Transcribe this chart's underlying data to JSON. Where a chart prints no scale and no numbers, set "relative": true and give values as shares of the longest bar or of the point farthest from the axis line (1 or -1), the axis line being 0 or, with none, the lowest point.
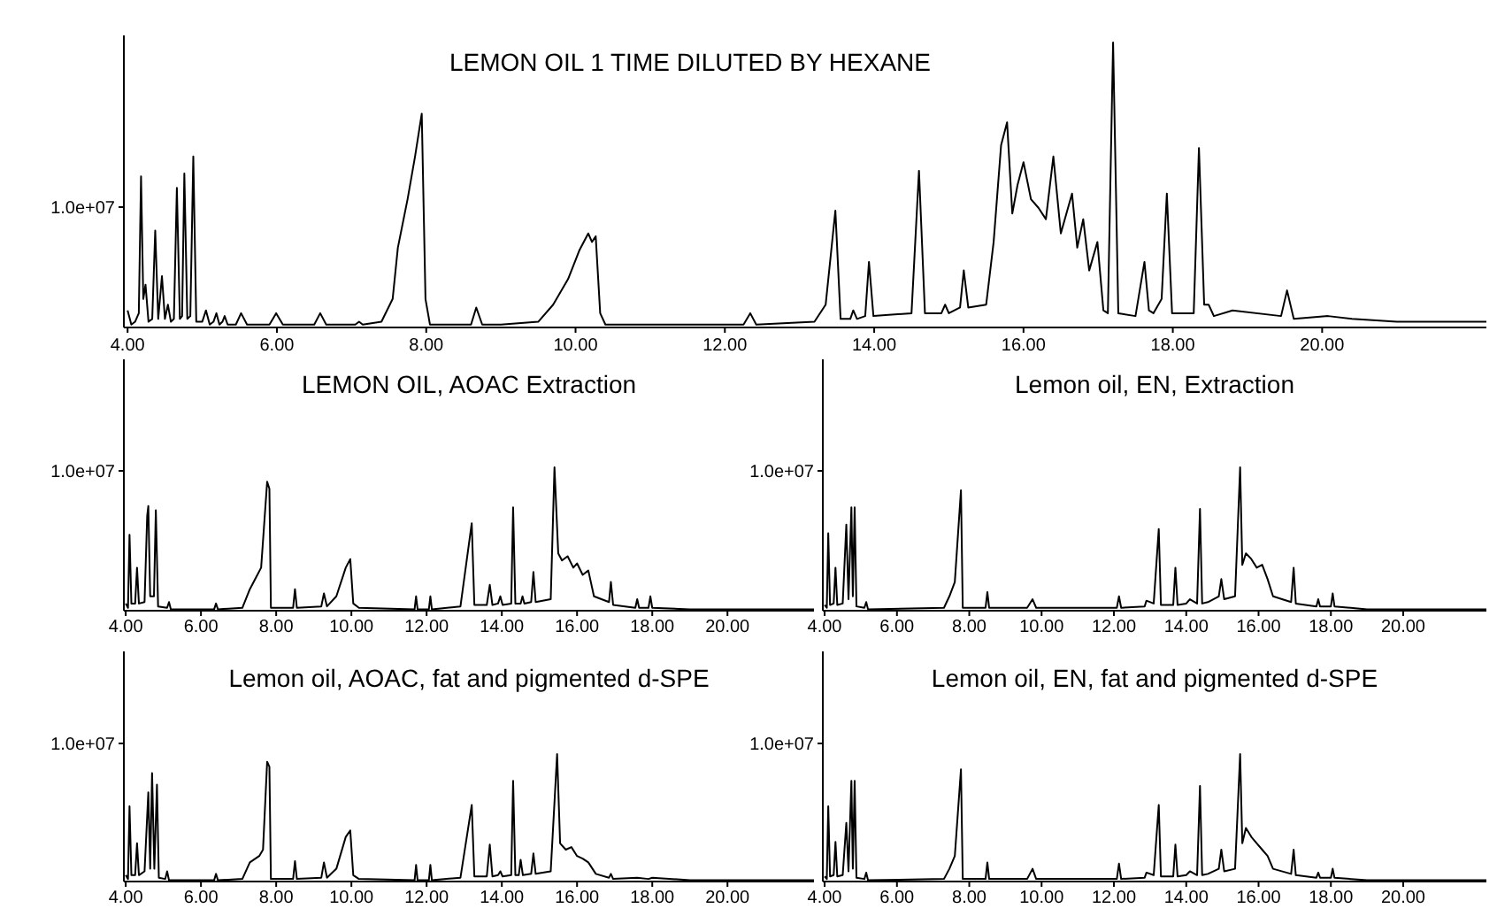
{
  "chart_data": [
    {
      "type": "line",
      "title": "LEMON OIL 1 TIME DILUTED BY HEXANE",
      "relative": true,
      "xlim": [
        3.95,
        22.2
      ],
      "xticks": [
        {
          "value": 4,
          "label": "4.00"
        },
        {
          "value": 6,
          "label": "6.00"
        },
        {
          "value": 8,
          "label": "8.00"
        },
        {
          "value": 10,
          "label": "10.00"
        },
        {
          "value": 12,
          "label": "12.00"
        },
        {
          "value": 14,
          "label": "14.00"
        },
        {
          "value": 16,
          "label": "16.00"
        },
        {
          "value": 18,
          "label": "18.00"
        },
        {
          "value": 20,
          "label": "20.00"
        }
      ],
      "annotations": [
        "1.0e+07"
      ],
      "marker": "none",
      "series": [
        {
          "color": "#000000",
          "x": [
            4.0,
            4.05,
            4.1,
            4.15,
            4.18,
            4.21,
            4.24,
            4.28,
            4.33,
            4.37,
            4.41,
            4.46,
            4.5,
            4.54,
            4.58,
            4.62,
            4.66,
            4.7,
            4.73,
            4.76,
            4.8,
            4.84,
            4.88,
            4.92,
            5.0,
            5.05,
            5.1,
            5.15,
            5.19,
            5.23,
            5.27,
            5.3,
            5.34,
            5.45,
            5.52,
            5.6,
            5.9,
            5.99,
            6.08,
            6.5,
            6.58,
            6.66,
            7.05,
            7.1,
            7.15,
            7.4,
            7.55,
            7.62,
            7.75,
            7.85,
            7.94,
            7.99,
            8.05,
            8.6,
            8.67,
            8.75,
            9.0,
            9.5,
            9.7,
            9.9,
            10.05,
            10.17,
            10.22,
            10.27,
            10.33,
            10.4,
            12.25,
            12.34,
            12.42,
            13.2,
            13.35,
            13.48,
            13.55,
            13.68,
            13.72,
            13.77,
            13.88,
            13.93,
            13.99,
            14.5,
            14.6,
            14.68,
            14.9,
            14.95,
            15.0,
            15.15,
            15.2,
            15.26,
            15.5,
            15.6,
            15.7,
            15.78,
            15.85,
            15.92,
            16.0,
            16.1,
            16.2,
            16.3,
            16.4,
            16.5,
            16.65,
            16.72,
            16.8,
            16.88,
            16.99,
            17.07,
            17.13,
            17.2,
            17.27,
            17.5,
            17.62,
            17.68,
            17.74,
            17.85,
            17.92,
            17.99,
            18.28,
            18.35,
            18.42,
            18.48,
            18.55,
            18.8,
            19.45,
            19.53,
            19.62,
            20.08,
            20.4,
            21.0,
            22.2
          ],
          "values": [
            0.06,
            0.01,
            0.02,
            0.05,
            0.53,
            0.1,
            0.15,
            0.02,
            0.03,
            0.34,
            0.03,
            0.18,
            0.03,
            0.08,
            0.02,
            0.03,
            0.49,
            0.03,
            0.04,
            0.54,
            0.03,
            0.04,
            0.6,
            0.02,
            0.02,
            0.06,
            0.01,
            0.02,
            0.05,
            0.01,
            0.02,
            0.04,
            0.01,
            0.01,
            0.05,
            0.01,
            0.01,
            0.05,
            0.01,
            0.01,
            0.05,
            0.01,
            0.01,
            0.02,
            0.01,
            0.02,
            0.1,
            0.28,
            0.45,
            0.6,
            0.75,
            0.1,
            0.01,
            0.01,
            0.07,
            0.01,
            0.01,
            0.02,
            0.08,
            0.17,
            0.27,
            0.33,
            0.3,
            0.32,
            0.05,
            0.01,
            0.01,
            0.05,
            0.01,
            0.02,
            0.08,
            0.41,
            0.03,
            0.03,
            0.06,
            0.03,
            0.04,
            0.23,
            0.04,
            0.05,
            0.55,
            0.05,
            0.05,
            0.08,
            0.05,
            0.07,
            0.2,
            0.07,
            0.08,
            0.3,
            0.64,
            0.72,
            0.4,
            0.5,
            0.58,
            0.45,
            0.42,
            0.38,
            0.6,
            0.33,
            0.47,
            0.28,
            0.38,
            0.2,
            0.3,
            0.06,
            0.05,
            1.0,
            0.05,
            0.04,
            0.23,
            0.06,
            0.05,
            0.1,
            0.47,
            0.05,
            0.05,
            0.63,
            0.08,
            0.08,
            0.04,
            0.06,
            0.04,
            0.13,
            0.03,
            0.04,
            0.03,
            0.02,
            0.02
          ]
        }
      ]
    },
    {
      "type": "line",
      "title": "LEMON OIL, AOAC Extraction",
      "relative": true,
      "xlim": [
        3.95,
        22.3
      ],
      "xticks": [
        {
          "value": 4,
          "label": "4.00"
        },
        {
          "value": 6,
          "label": "6.00"
        },
        {
          "value": 8,
          "label": "8.00"
        },
        {
          "value": 10,
          "label": "10.00"
        },
        {
          "value": 12,
          "label": "12.00"
        },
        {
          "value": 14,
          "label": "14.00"
        },
        {
          "value": 16,
          "label": "16.00"
        },
        {
          "value": 18,
          "label": "18.00"
        },
        {
          "value": 20,
          "label": "20.00"
        }
      ],
      "annotations": [
        "1.0e+07"
      ],
      "marker": "none",
      "series": [
        {
          "color": "#000000",
          "x": [
            4.0,
            4.06,
            4.1,
            4.15,
            4.25,
            4.3,
            4.35,
            4.5,
            4.57,
            4.6,
            4.65,
            4.75,
            4.8,
            4.86,
            5.1,
            5.15,
            5.2,
            6.35,
            6.4,
            6.45,
            7.1,
            7.3,
            7.5,
            7.6,
            7.76,
            7.82,
            7.86,
            8.45,
            8.5,
            8.55,
            9.2,
            9.27,
            9.35,
            9.6,
            9.85,
            9.97,
            10.05,
            10.2,
            11.68,
            11.72,
            11.76,
            12.06,
            12.1,
            12.14,
            12.9,
            13.2,
            13.27,
            13.6,
            13.68,
            13.75,
            13.9,
            13.96,
            14.02,
            14.25,
            14.3,
            14.36,
            14.5,
            14.55,
            14.6,
            14.78,
            14.84,
            14.9,
            15.3,
            15.4,
            15.5,
            15.6,
            15.75,
            15.9,
            16.0,
            16.15,
            16.3,
            16.45,
            16.85,
            16.9,
            16.96,
            17.55,
            17.6,
            17.65,
            17.9,
            17.95,
            18.0,
            19.0,
            22.3
          ],
          "values": [
            0.05,
            0.02,
            0.53,
            0.05,
            0.05,
            0.3,
            0.05,
            0.06,
            0.66,
            0.73,
            0.1,
            0.1,
            0.7,
            0.03,
            0.02,
            0.06,
            0.01,
            0.01,
            0.05,
            0.01,
            0.02,
            0.15,
            0.25,
            0.3,
            0.9,
            0.85,
            0.02,
            0.02,
            0.15,
            0.02,
            0.03,
            0.12,
            0.03,
            0.1,
            0.3,
            0.36,
            0.05,
            0.02,
            0.01,
            0.1,
            0.01,
            0.01,
            0.1,
            0.01,
            0.03,
            0.61,
            0.04,
            0.04,
            0.18,
            0.04,
            0.05,
            0.1,
            0.04,
            0.05,
            0.72,
            0.05,
            0.05,
            0.1,
            0.05,
            0.06,
            0.27,
            0.06,
            0.08,
            1.0,
            0.4,
            0.35,
            0.38,
            0.3,
            0.33,
            0.25,
            0.28,
            0.1,
            0.06,
            0.2,
            0.04,
            0.02,
            0.08,
            0.02,
            0.02,
            0.1,
            0.02,
            0.01,
            0.01
          ]
        }
      ]
    },
    {
      "type": "line",
      "title": "Lemon oil, EN, Extraction",
      "relative": true,
      "xlim": [
        3.95,
        22.3
      ],
      "xticks": [
        {
          "value": 4,
          "label": "4.00"
        },
        {
          "value": 6,
          "label": "6.00"
        },
        {
          "value": 8,
          "label": "8.00"
        },
        {
          "value": 10,
          "label": "10.00"
        },
        {
          "value": 12,
          "label": "12.00"
        },
        {
          "value": 14,
          "label": "14.00"
        },
        {
          "value": 16,
          "label": "16.00"
        },
        {
          "value": 18,
          "label": "18.00"
        },
        {
          "value": 20,
          "label": "20.00"
        }
      ],
      "annotations": [
        "1.0e+07"
      ],
      "marker": "none",
      "series": [
        {
          "color": "#000000",
          "x": [
            4.0,
            4.06,
            4.1,
            4.15,
            4.25,
            4.3,
            4.35,
            4.5,
            4.6,
            4.66,
            4.74,
            4.78,
            4.83,
            4.88,
            5.1,
            5.15,
            5.2,
            7.3,
            7.45,
            7.6,
            7.77,
            7.82,
            8.45,
            8.5,
            8.55,
            9.6,
            9.75,
            9.85,
            12.08,
            12.14,
            12.2,
            12.85,
            12.9,
            13.1,
            13.24,
            13.3,
            13.64,
            13.7,
            13.76,
            14.0,
            14.1,
            14.3,
            14.38,
            14.44,
            14.6,
            14.9,
            14.97,
            15.05,
            15.35,
            15.49,
            15.55,
            15.65,
            15.8,
            15.95,
            16.1,
            16.25,
            16.4,
            16.9,
            16.97,
            17.03,
            17.6,
            17.65,
            17.7,
            18.0,
            18.05,
            18.1,
            19.0,
            22.3
          ],
          "values": [
            0.04,
            0.02,
            0.54,
            0.04,
            0.05,
            0.3,
            0.04,
            0.05,
            0.6,
            0.08,
            0.72,
            0.1,
            0.72,
            0.03,
            0.02,
            0.06,
            0.01,
            0.02,
            0.1,
            0.2,
            0.84,
            0.02,
            0.02,
            0.13,
            0.02,
            0.02,
            0.08,
            0.02,
            0.02,
            0.1,
            0.02,
            0.03,
            0.07,
            0.05,
            0.57,
            0.04,
            0.04,
            0.3,
            0.04,
            0.05,
            0.08,
            0.05,
            0.71,
            0.05,
            0.06,
            0.1,
            0.22,
            0.08,
            0.1,
            1.0,
            0.32,
            0.4,
            0.36,
            0.3,
            0.32,
            0.22,
            0.1,
            0.06,
            0.3,
            0.05,
            0.03,
            0.08,
            0.03,
            0.03,
            0.12,
            0.03,
            0.01,
            0.01
          ]
        }
      ]
    },
    {
      "type": "line",
      "title": "Lemon oil, AOAC, fat and pigmented d-SPE",
      "relative": true,
      "xlim": [
        3.95,
        22.3
      ],
      "xticks": [
        {
          "value": 4,
          "label": "4.00"
        },
        {
          "value": 6,
          "label": "6.00"
        },
        {
          "value": 8,
          "label": "8.00"
        },
        {
          "value": 10,
          "label": "10.00"
        },
        {
          "value": 12,
          "label": "12.00"
        },
        {
          "value": 14,
          "label": "14.00"
        },
        {
          "value": 16,
          "label": "16.00"
        },
        {
          "value": 18,
          "label": "18.00"
        },
        {
          "value": 20,
          "label": "20.00"
        }
      ],
      "annotations": [
        "1.0e+07"
      ],
      "marker": "none",
      "series": [
        {
          "color": "#000000",
          "x": [
            4.0,
            4.06,
            4.1,
            4.15,
            4.25,
            4.3,
            4.35,
            4.5,
            4.6,
            4.65,
            4.7,
            4.76,
            4.83,
            4.88,
            5.05,
            5.1,
            5.15,
            6.35,
            6.4,
            6.45,
            7.1,
            7.3,
            7.55,
            7.65,
            7.76,
            7.82,
            7.86,
            8.45,
            8.5,
            8.55,
            9.2,
            9.27,
            9.35,
            9.6,
            9.85,
            9.97,
            10.05,
            10.2,
            11.68,
            11.72,
            11.76,
            12.06,
            12.1,
            12.14,
            12.9,
            13.2,
            13.27,
            13.6,
            13.68,
            13.75,
            13.9,
            13.96,
            14.02,
            14.25,
            14.3,
            14.36,
            14.45,
            14.5,
            14.56,
            14.78,
            14.84,
            14.9,
            15.3,
            15.47,
            15.55,
            15.7,
            15.85,
            16.0,
            16.15,
            16.3,
            16.5,
            16.85,
            16.9,
            16.96,
            17.6,
            17.9,
            18.0,
            19.0,
            22.3
          ],
          "values": [
            0.05,
            0.02,
            0.59,
            0.05,
            0.05,
            0.3,
            0.05,
            0.08,
            0.7,
            0.1,
            0.85,
            0.1,
            0.76,
            0.03,
            0.02,
            0.08,
            0.01,
            0.01,
            0.06,
            0.01,
            0.02,
            0.15,
            0.2,
            0.25,
            0.94,
            0.9,
            0.02,
            0.02,
            0.16,
            0.02,
            0.03,
            0.15,
            0.03,
            0.1,
            0.35,
            0.4,
            0.05,
            0.02,
            0.01,
            0.13,
            0.01,
            0.01,
            0.13,
            0.01,
            0.03,
            0.6,
            0.04,
            0.04,
            0.29,
            0.04,
            0.05,
            0.08,
            0.04,
            0.05,
            0.79,
            0.05,
            0.05,
            0.17,
            0.05,
            0.06,
            0.22,
            0.06,
            0.08,
            1.0,
            0.3,
            0.25,
            0.27,
            0.2,
            0.18,
            0.15,
            0.06,
            0.03,
            0.06,
            0.02,
            0.03,
            0.02,
            0.03,
            0.01,
            0.01
          ]
        }
      ]
    },
    {
      "type": "line",
      "title": "Lemon oil, EN, fat and pigmented d-SPE",
      "relative": true,
      "xlim": [
        3.95,
        22.3
      ],
      "xticks": [
        {
          "value": 4,
          "label": "4.00"
        },
        {
          "value": 6,
          "label": "6.00"
        },
        {
          "value": 8,
          "label": "8.00"
        },
        {
          "value": 10,
          "label": "10.00"
        },
        {
          "value": 12,
          "label": "12.00"
        },
        {
          "value": 14,
          "label": "14.00"
        },
        {
          "value": 16,
          "label": "16.00"
        },
        {
          "value": 18,
          "label": "18.00"
        },
        {
          "value": 20,
          "label": "20.00"
        }
      ],
      "annotations": [
        "1.0e+07"
      ],
      "marker": "none",
      "series": [
        {
          "color": "#000000",
          "x": [
            4.0,
            4.06,
            4.1,
            4.15,
            4.25,
            4.3,
            4.35,
            4.5,
            4.6,
            4.66,
            4.74,
            4.78,
            4.83,
            4.88,
            5.1,
            5.15,
            5.2,
            7.3,
            7.45,
            7.6,
            7.77,
            7.82,
            8.45,
            8.5,
            8.55,
            9.6,
            9.75,
            9.85,
            12.08,
            12.14,
            12.2,
            12.85,
            12.9,
            13.1,
            13.24,
            13.3,
            13.64,
            13.7,
            13.76,
            14.0,
            14.1,
            14.3,
            14.38,
            14.44,
            14.6,
            14.9,
            14.97,
            15.05,
            15.35,
            15.49,
            15.55,
            15.65,
            15.8,
            15.95,
            16.1,
            16.25,
            16.4,
            16.9,
            16.97,
            17.03,
            17.6,
            17.65,
            17.7,
            18.0,
            18.05,
            18.1,
            19.0,
            22.3
          ],
          "values": [
            0.04,
            0.02,
            0.59,
            0.04,
            0.05,
            0.31,
            0.04,
            0.05,
            0.46,
            0.08,
            0.79,
            0.1,
            0.79,
            0.03,
            0.02,
            0.07,
            0.01,
            0.02,
            0.1,
            0.2,
            0.88,
            0.02,
            0.02,
            0.15,
            0.02,
            0.02,
            0.1,
            0.02,
            0.02,
            0.14,
            0.02,
            0.03,
            0.07,
            0.05,
            0.6,
            0.04,
            0.04,
            0.29,
            0.04,
            0.05,
            0.08,
            0.05,
            0.75,
            0.05,
            0.06,
            0.1,
            0.25,
            0.08,
            0.1,
            1.0,
            0.3,
            0.42,
            0.35,
            0.3,
            0.25,
            0.2,
            0.1,
            0.06,
            0.25,
            0.05,
            0.03,
            0.07,
            0.03,
            0.03,
            0.1,
            0.03,
            0.01,
            0.01
          ]
        }
      ]
    }
  ]
}
